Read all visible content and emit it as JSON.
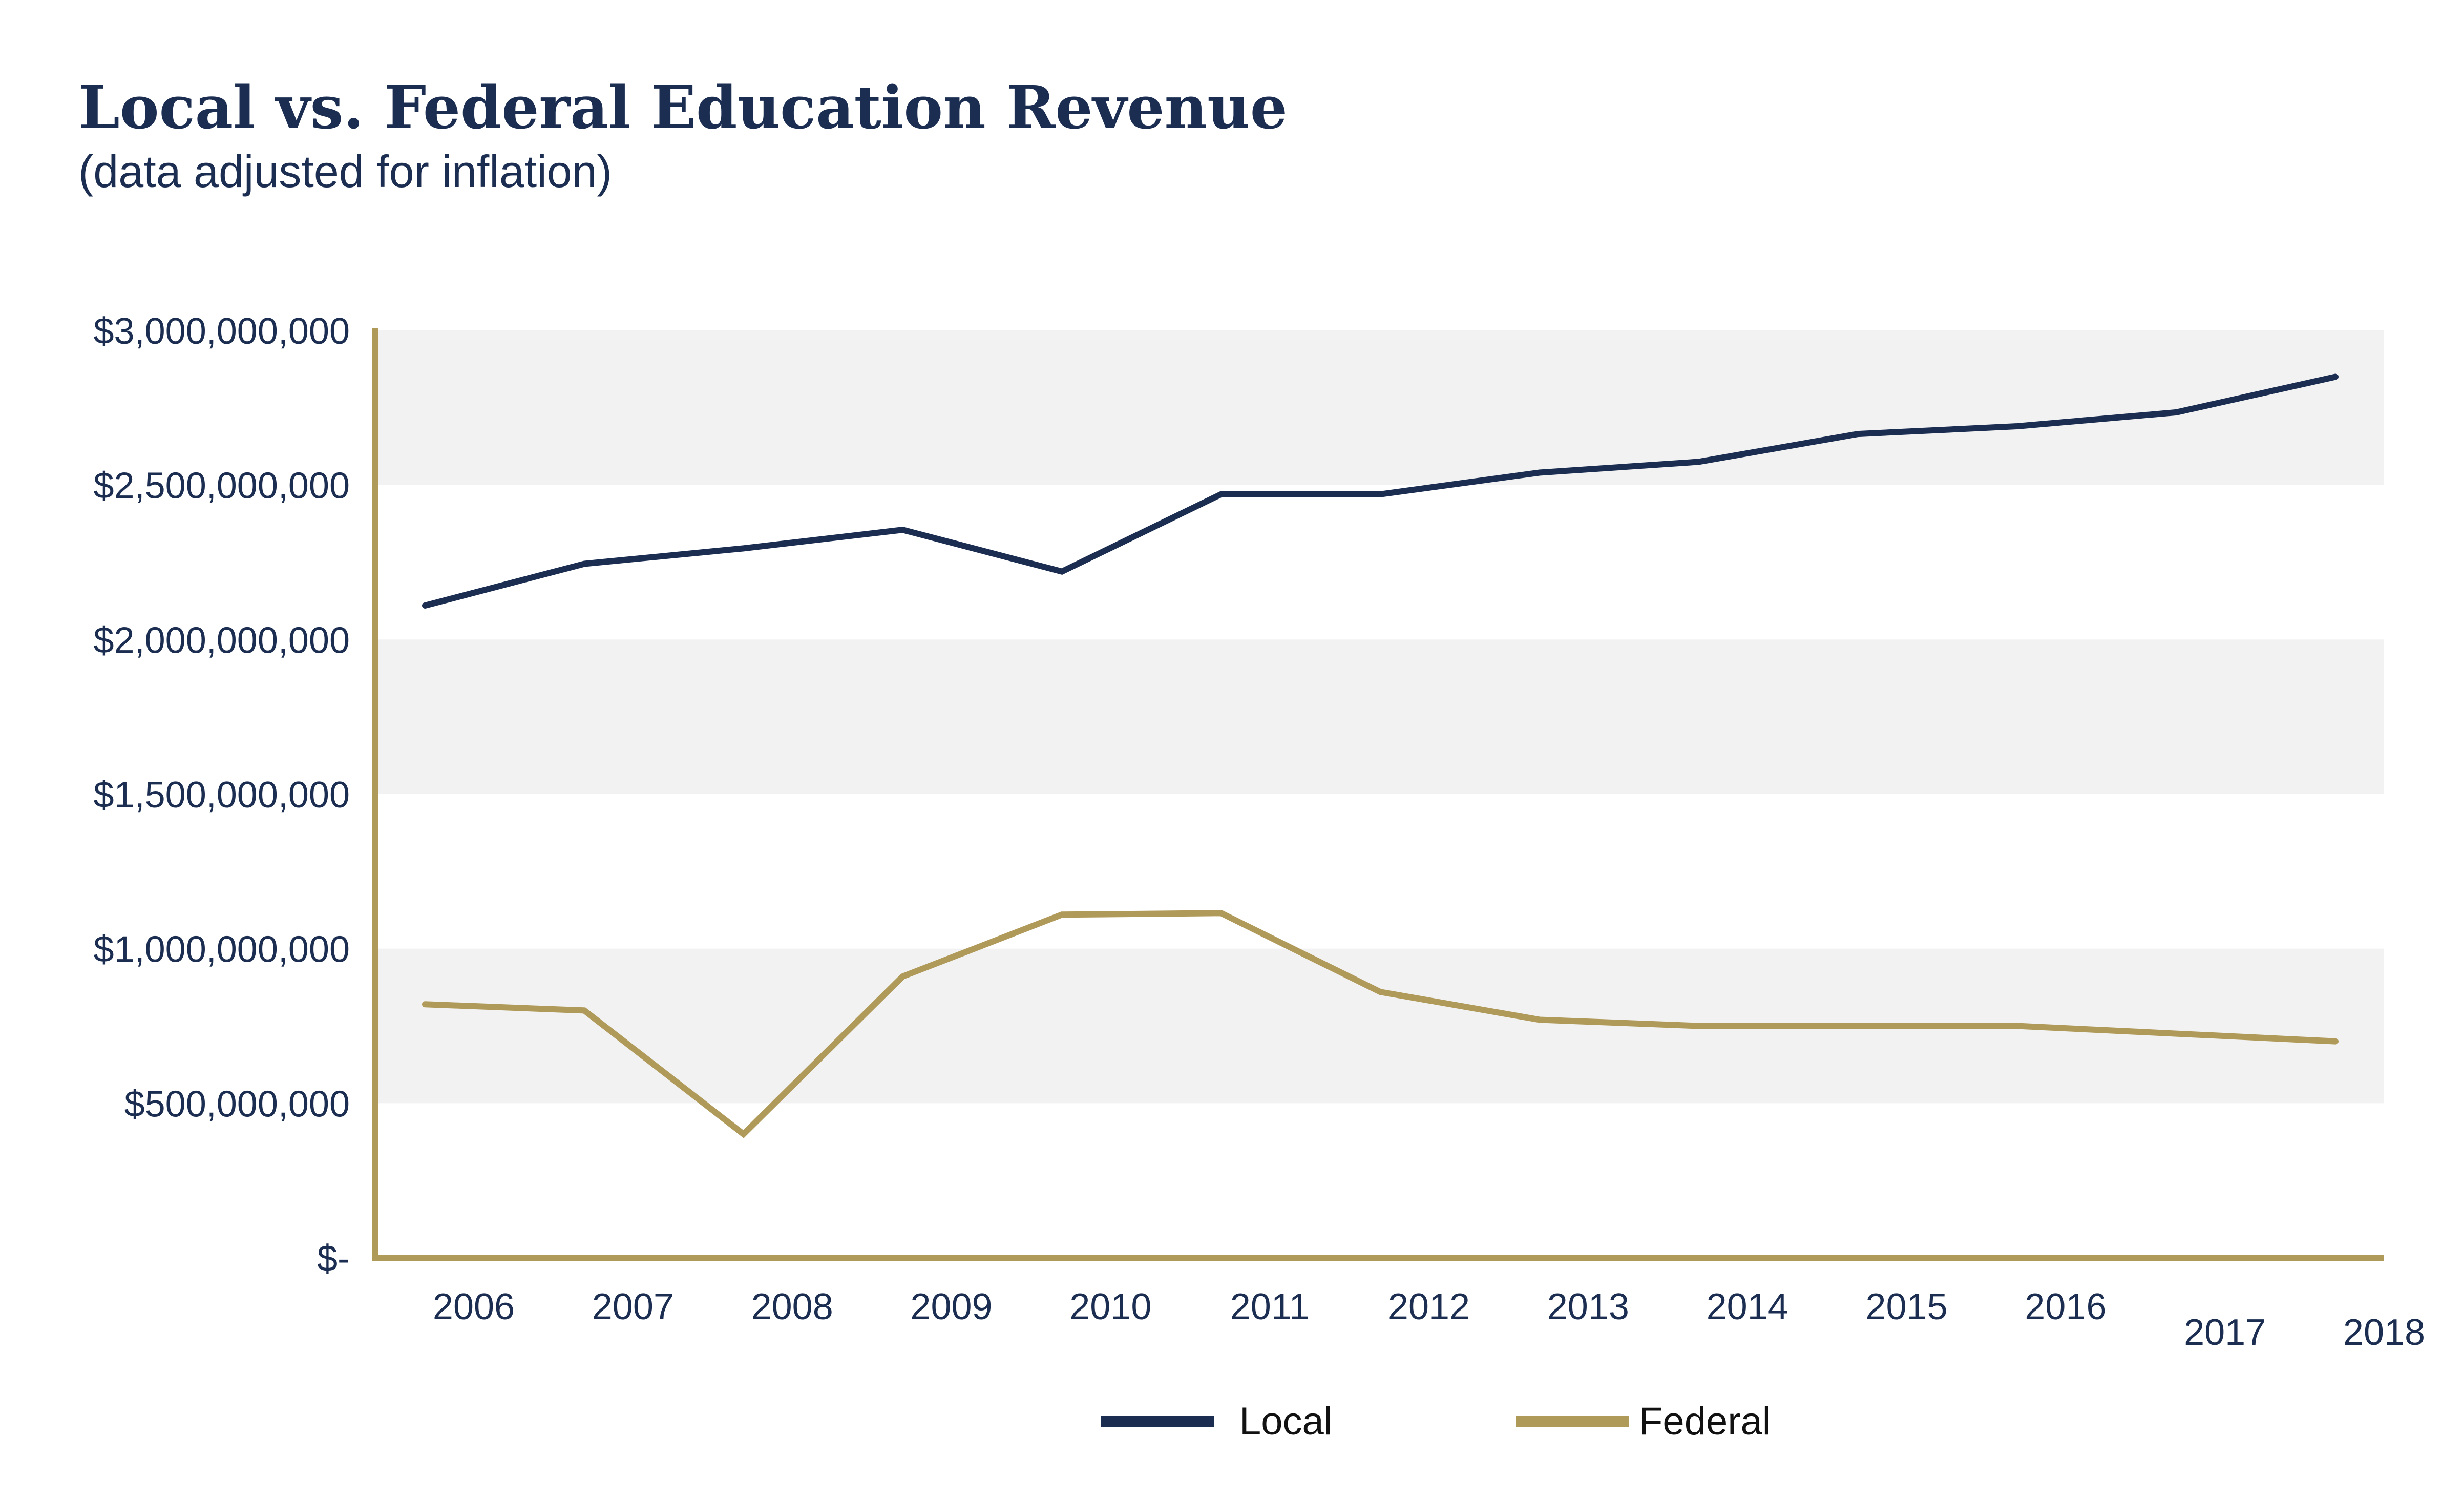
{
  "chart_data": {
    "type": "line",
    "title": "Local vs. Federal Education Revenue",
    "subtitle": "(data adjusted for inflation)",
    "xlabel": "",
    "ylabel": "",
    "categories": [
      "2006",
      "2007",
      "2008",
      "2009",
      "2010",
      "2011",
      "2012",
      "2013",
      "2014",
      "2015",
      "2016",
      "2017",
      "2018"
    ],
    "ylim": [
      0,
      3000000000
    ],
    "yticks": [
      0,
      500000000,
      1000000000,
      1500000000,
      2000000000,
      2500000000,
      3000000000
    ],
    "ytick_labels": [
      "$-",
      "$500,000,000",
      "$1,000,000,000",
      "$1,500,000,000",
      "$2,000,000,000",
      "$2,500,000,000",
      "$3,000,000,000"
    ],
    "series": [
      {
        "name": "Local",
        "color": "#1b2d51",
        "values": [
          2110000000,
          2245000000,
          2295000000,
          2355000000,
          2220000000,
          2470000000,
          2470000000,
          2540000000,
          2575000000,
          2665000000,
          2690000000,
          2735000000,
          2850000000
        ]
      },
      {
        "name": "Federal",
        "color": "#b09a5a",
        "values": [
          820000000,
          800000000,
          400000000,
          910000000,
          1110000000,
          1115000000,
          860000000,
          770000000,
          750000000,
          750000000,
          750000000,
          725000000,
          700000000
        ]
      }
    ],
    "grid": true,
    "band_color": "#f2f2f2",
    "axis_color": "#b09a5a",
    "legend_position": "bottom-center"
  }
}
